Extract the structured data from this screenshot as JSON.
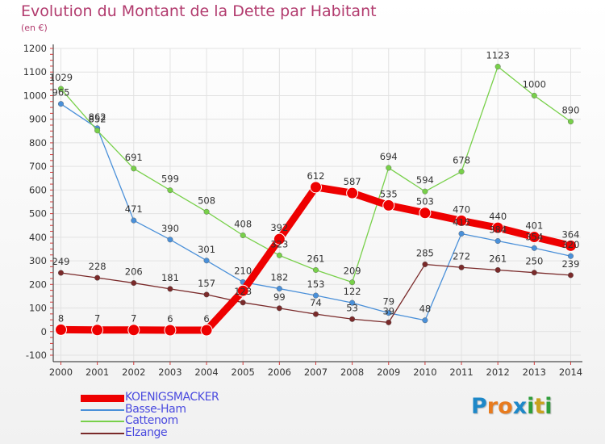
{
  "header": {
    "title": "Evolution du Montant de la Dette par Habitant",
    "unit": "(en €)"
  },
  "brand": {
    "letters": [
      "P",
      "r",
      "o",
      "x",
      "i",
      "t",
      "i"
    ],
    "colors": [
      "#1e88c8",
      "#e87b1e",
      "#e87b1e",
      "#1e88c8",
      "#2e9e3a",
      "#c9a21e",
      "#2e9e3a"
    ]
  },
  "colors": {
    "title": "#b23b6e",
    "axis": "#333333",
    "grid": "#e2e2e2"
  },
  "chart_data": {
    "type": "line",
    "x": [
      "2000",
      "2001",
      "2002",
      "2003",
      "2004",
      "2005",
      "2006",
      "2007",
      "2008",
      "2009",
      "2010",
      "2011",
      "2012",
      "2013",
      "2014"
    ],
    "ylim": [
      -100,
      1200
    ],
    "yticks": [
      "-100",
      "0",
      "100",
      "200",
      "300",
      "400",
      "500",
      "600",
      "700",
      "800",
      "900",
      "1000",
      "1100",
      "1200"
    ],
    "grid": true,
    "legend": "bottom-left",
    "series": [
      {
        "name": "Basse-Ham",
        "color": "#4a90d9",
        "values": [
          965,
          862,
          471,
          390,
          301,
          210,
          182,
          153,
          122,
          79,
          48,
          415,
          384,
          354,
          320
        ],
        "labels": [
          "965",
          "862",
          "471",
          "390",
          "301",
          "210",
          "182",
          "153",
          "122",
          "79",
          "48",
          "415",
          "384",
          "354",
          "320"
        ]
      },
      {
        "name": "Cattenom",
        "color": "#78d04a",
        "values": [
          1029,
          852,
          691,
          599,
          508,
          408,
          323,
          261,
          209,
          694,
          594,
          678,
          1123,
          1000,
          890
        ],
        "labels": [
          "1029",
          "852",
          "691",
          "599",
          "508",
          "408",
          "323",
          "261",
          "209",
          "694",
          "594",
          "678",
          "1123",
          "1000",
          "890"
        ]
      },
      {
        "name": "Elzange",
        "color": "#7a2a2a",
        "values": [
          249,
          228,
          206,
          181,
          157,
          123,
          99,
          74,
          53,
          39,
          285,
          272,
          261,
          250,
          239
        ],
        "labels": [
          "249",
          "228",
          "206",
          "181",
          "157",
          "123",
          "99",
          "74",
          "53",
          "39",
          "285",
          "272",
          "261",
          "250",
          "239"
        ]
      },
      {
        "name": "KOENIGSMACKER",
        "color": "#ee0000",
        "values": [
          8,
          7,
          7,
          6,
          6,
          173,
          392,
          612,
          587,
          535,
          503,
          470,
          440,
          401,
          364
        ],
        "labels": [
          "8",
          "7",
          "7",
          "6",
          "6",
          "",
          "392",
          "612",
          "587",
          "535",
          "503",
          "470",
          "440",
          "401",
          "364"
        ],
        "highlight": true
      }
    ],
    "legend_entries": [
      {
        "name": "KOENIGSMACKER",
        "color": "#ee0000",
        "text_color": "#4a4adf",
        "thick": true
      },
      {
        "name": "Basse-Ham",
        "color": "#4a90d9",
        "text_color": "#4a4adf",
        "thick": false
      },
      {
        "name": "Cattenom",
        "color": "#78d04a",
        "text_color": "#4a4adf",
        "thick": false
      },
      {
        "name": "Elzange",
        "color": "#7a2a2a",
        "text_color": "#4a4adf",
        "thick": false
      }
    ]
  }
}
